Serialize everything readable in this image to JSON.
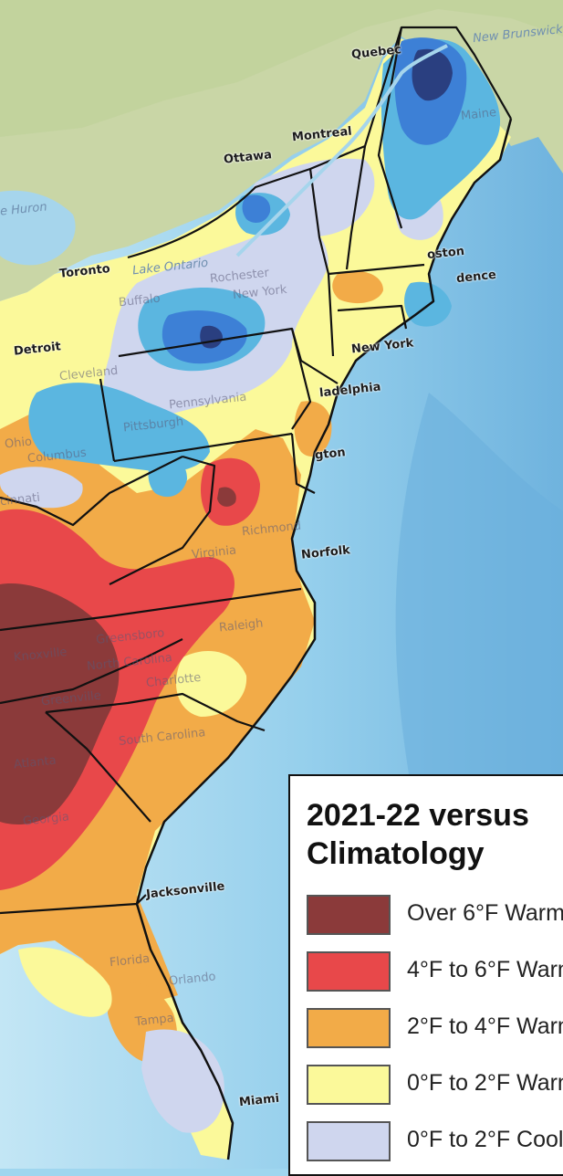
{
  "map": {
    "labels": {
      "quebec": "Quebec",
      "new_brunswick": "New Brunswick",
      "maine": "Maine",
      "ottawa": "Ottawa",
      "montreal": "Montreal",
      "lake_huron": "e Huron",
      "toronto": "Toronto",
      "lake_ontario": "Lake Ontario",
      "boston": "oston",
      "providence": "dence",
      "detroit": "Detroit",
      "buffalo": "Buffalo",
      "rochester": "Rochester",
      "new_york_state": "New York",
      "cleveland": "Cleveland",
      "new_york_city": "New York",
      "pittsburgh": "Pittsburgh",
      "pennsylvania": "Pennsylvania",
      "philadelphia": "ladelphia",
      "ohio": "Ohio",
      "columbus": "Columbus",
      "washington": "gton",
      "cincinnati": "cinnati",
      "richmond": "Richmond",
      "virginia": "Virginia",
      "norfolk": "Norfolk",
      "greensboro": "Greensboro",
      "raleigh": "Raleigh",
      "knoxville": "Knoxville",
      "north_carolina": "North Carolina",
      "charlotte": "Charlotte",
      "greenville": "Greenville",
      "atlanta": "Atlanta",
      "south_carolina": "South Carolina",
      "georgia": "Georgia",
      "jacksonville": "Jacksonville",
      "florida": "Florida",
      "orlando": "Orlando",
      "tampa": "Tampa",
      "miami": "Miami"
    }
  },
  "legend": {
    "title": "2021-22 versus Climatology",
    "items": [
      {
        "label": "Over 6°F Warmer",
        "color": "#8b3a3a"
      },
      {
        "label": "4°F to 6°F Warmer",
        "color": "#e8484a"
      },
      {
        "label": "2°F to 4°F Warmer",
        "color": "#f2ab48"
      },
      {
        "label": "0°F to 2°F Warmer",
        "color": "#fbf99a"
      },
      {
        "label": "0°F to 2°F Cooler",
        "color": "#cfd6ee"
      }
    ]
  },
  "colors": {
    "ocean_shallow": "#b8e2f3",
    "ocean_deep": "#78b8e0",
    "land_canada": "#c9d7a8",
    "lake": "#a7d7ee",
    "cool_2_4": "#5bb6e0",
    "cool_4_6": "#3d80d6",
    "cool_over_6": "#2a3f80"
  }
}
